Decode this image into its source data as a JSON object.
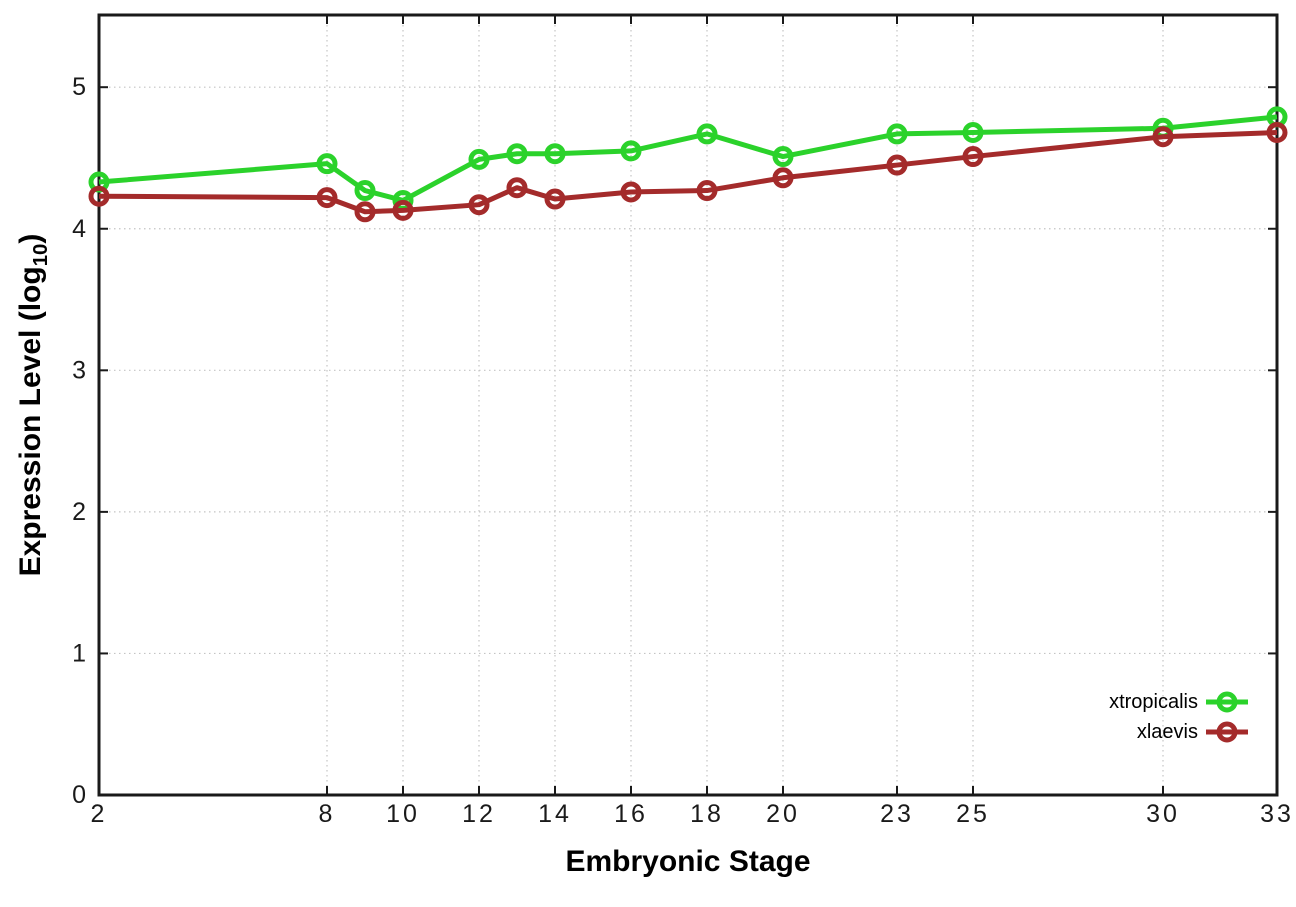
{
  "chart_data": {
    "type": "line",
    "title": "",
    "xlabel": "Embryonic Stage",
    "ylabel": "Expression Level (log10)",
    "ylabel_parts": {
      "main": "Expression Level (log",
      "sub": "10",
      "close": ")"
    },
    "x": [
      2,
      8,
      9,
      10,
      12,
      13,
      14,
      16,
      18,
      20,
      23,
      25,
      30,
      33
    ],
    "series": [
      {
        "name": "xtropicalis",
        "color": "#2bd22b",
        "values": [
          4.33,
          4.46,
          4.27,
          4.2,
          4.49,
          4.53,
          4.53,
          4.55,
          4.67,
          4.51,
          4.67,
          4.68,
          4.71,
          4.79
        ]
      },
      {
        "name": "xlaevis",
        "color": "#a42b2b",
        "values": [
          4.23,
          4.22,
          4.12,
          4.13,
          4.17,
          4.29,
          4.21,
          4.26,
          4.27,
          4.36,
          4.45,
          4.51,
          4.65,
          4.68
        ]
      }
    ],
    "xlim": [
      2,
      33
    ],
    "ylim": [
      0,
      5.51
    ],
    "xticks": [
      2,
      8,
      10,
      12,
      14,
      16,
      18,
      20,
      23,
      25,
      30,
      33
    ],
    "yticks": [
      0,
      1,
      2,
      3,
      4,
      5
    ],
    "grid": true,
    "legend_position": "inside-bottom-right"
  },
  "styles": {
    "grid_color": "#c4c4c4",
    "border_color": "#1a1a1a",
    "tick_color": "#1a1a1a"
  }
}
